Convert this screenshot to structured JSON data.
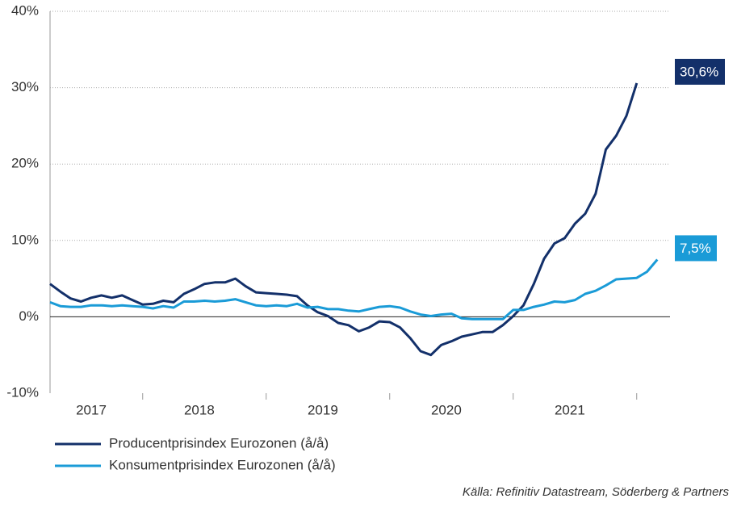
{
  "chart_data": {
    "type": "line",
    "categories": [
      null,
      null,
      null,
      null,
      "2017",
      null,
      null,
      null,
      null,
      null,
      null,
      null,
      null,
      null,
      null,
      "2018",
      null,
      null,
      null,
      null,
      null,
      null,
      null,
      null,
      null,
      null,
      null,
      "2019",
      null,
      null,
      null,
      null,
      null,
      null,
      null,
      null,
      null,
      null,
      null,
      "2020",
      null,
      null,
      null,
      null,
      null,
      null,
      null,
      null,
      null,
      null,
      null,
      "2021",
      null,
      null,
      null,
      null,
      null,
      null,
      null,
      null
    ],
    "series": [
      {
        "name": "Producentprisindex Eurozonen (å/å)",
        "color": "#13306a",
        "values": [
          4.3,
          3.3,
          2.4,
          2.0,
          2.5,
          2.8,
          2.5,
          2.8,
          2.2,
          1.6,
          1.7,
          2.1,
          1.9,
          3.0,
          3.6,
          4.3,
          4.5,
          4.5,
          5.0,
          4.0,
          3.2,
          3.1,
          3.0,
          2.9,
          2.7,
          1.5,
          0.6,
          0.1,
          -0.8,
          -1.1,
          -1.9,
          -1.4,
          -0.6,
          -0.7,
          -1.4,
          -2.8,
          -4.5,
          -5.0,
          -3.7,
          -3.2,
          -2.6,
          -2.3,
          -2.0,
          -2.0,
          -1.1,
          0.1,
          1.5,
          4.3,
          7.6,
          9.6,
          10.3,
          12.2,
          13.5,
          16.1,
          21.9,
          23.7,
          26.3,
          30.6,
          null,
          null
        ],
        "value_labels": [
          null,
          null,
          null,
          null,
          null,
          null,
          null,
          null,
          null,
          null,
          null,
          null,
          null,
          null,
          null,
          null,
          null,
          null,
          null,
          null,
          null,
          null,
          null,
          null,
          null,
          null,
          null,
          null,
          null,
          null,
          null,
          null,
          null,
          null,
          null,
          null,
          null,
          null,
          null,
          null,
          null,
          null,
          null,
          null,
          null,
          null,
          null,
          null,
          null,
          null,
          null,
          null,
          null,
          null,
          null,
          null,
          null,
          "30,6%",
          null,
          null
        ]
      },
      {
        "name": "Konsumentprisindex Eurozonen (å/å)",
        "color": "#1a9bd7",
        "values": [
          1.9,
          1.4,
          1.3,
          1.3,
          1.5,
          1.5,
          1.4,
          1.5,
          1.4,
          1.3,
          1.1,
          1.4,
          1.2,
          2.0,
          2.0,
          2.1,
          2.0,
          2.1,
          2.3,
          1.9,
          1.5,
          1.4,
          1.5,
          1.4,
          1.7,
          1.2,
          1.3,
          1.0,
          1.0,
          0.8,
          0.7,
          1.0,
          1.3,
          1.4,
          1.2,
          0.7,
          0.3,
          0.1,
          0.3,
          0.4,
          -0.2,
          -0.3,
          -0.3,
          -0.3,
          -0.3,
          0.9,
          0.9,
          1.3,
          1.6,
          2.0,
          1.9,
          2.2,
          3.0,
          3.4,
          4.1,
          4.9,
          5.0,
          5.1,
          5.9,
          7.5
        ],
        "value_labels": [
          null,
          null,
          null,
          null,
          null,
          null,
          null,
          null,
          null,
          null,
          null,
          null,
          null,
          null,
          null,
          null,
          null,
          null,
          null,
          null,
          null,
          null,
          null,
          null,
          null,
          null,
          null,
          null,
          null,
          null,
          null,
          null,
          null,
          null,
          null,
          null,
          null,
          null,
          null,
          null,
          null,
          null,
          null,
          null,
          null,
          null,
          null,
          null,
          null,
          null,
          null,
          null,
          null,
          null,
          null,
          null,
          null,
          null,
          null,
          "7,5%"
        ]
      }
    ],
    "ylim": [
      -10,
      40
    ],
    "yticks": [
      {
        "value": -10,
        "label": "-10%"
      },
      {
        "value": 0,
        "label": "0%"
      },
      {
        "value": 10,
        "label": "10%"
      },
      {
        "value": 20,
        "label": "20%"
      },
      {
        "value": 30,
        "label": "30%"
      },
      {
        "value": 40,
        "label": "40%"
      }
    ],
    "grid": true,
    "source": "Källa: Refinitiv Datastream, Söderberg & Partners"
  }
}
